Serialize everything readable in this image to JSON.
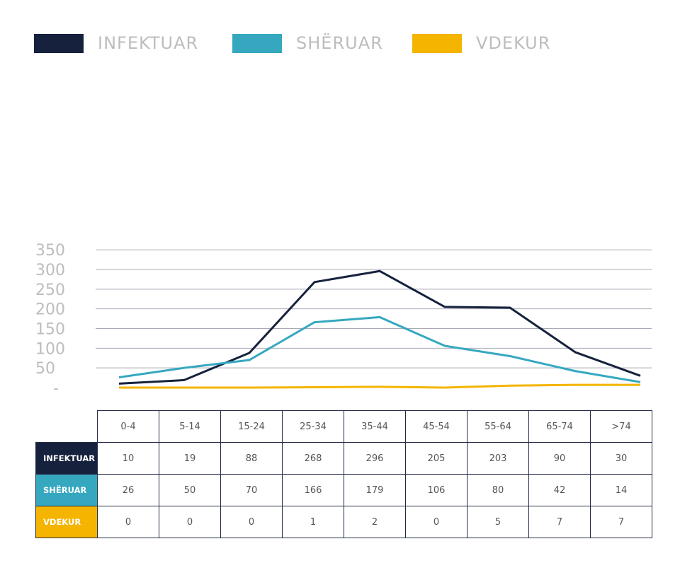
{
  "legend": [
    {
      "label": "INFEKTUAR",
      "color": "#16213d"
    },
    {
      "label": "SHËRUAR",
      "color": "#35a8c0"
    },
    {
      "label": "VDEKUR",
      "color": "#f4b400"
    }
  ],
  "chart_data": {
    "type": "line",
    "title": "",
    "xlabel": "",
    "ylabel": "",
    "categories": [
      "0-4",
      "5-14",
      "15-24",
      "25-34",
      "35-44",
      "45-54",
      "55-64",
      "65-74",
      ">74"
    ],
    "y_ticks": [
      "-",
      "50",
      "100",
      "150",
      "200",
      "250",
      "300",
      "350"
    ],
    "ylim": [
      0,
      350
    ],
    "grid": true,
    "legend_position": "top",
    "series": [
      {
        "name": "INFEKTUAR",
        "color": "#16213d",
        "values": [
          10,
          19,
          88,
          268,
          296,
          205,
          203,
          90,
          30
        ]
      },
      {
        "name": "SHËRUAR",
        "color": "#35a8c0",
        "values": [
          26,
          50,
          70,
          166,
          179,
          106,
          80,
          42,
          14
        ]
      },
      {
        "name": "VDEKUR",
        "color": "#f4b400",
        "values": [
          0,
          0,
          0,
          1,
          2,
          0,
          5,
          7,
          7
        ]
      }
    ]
  }
}
